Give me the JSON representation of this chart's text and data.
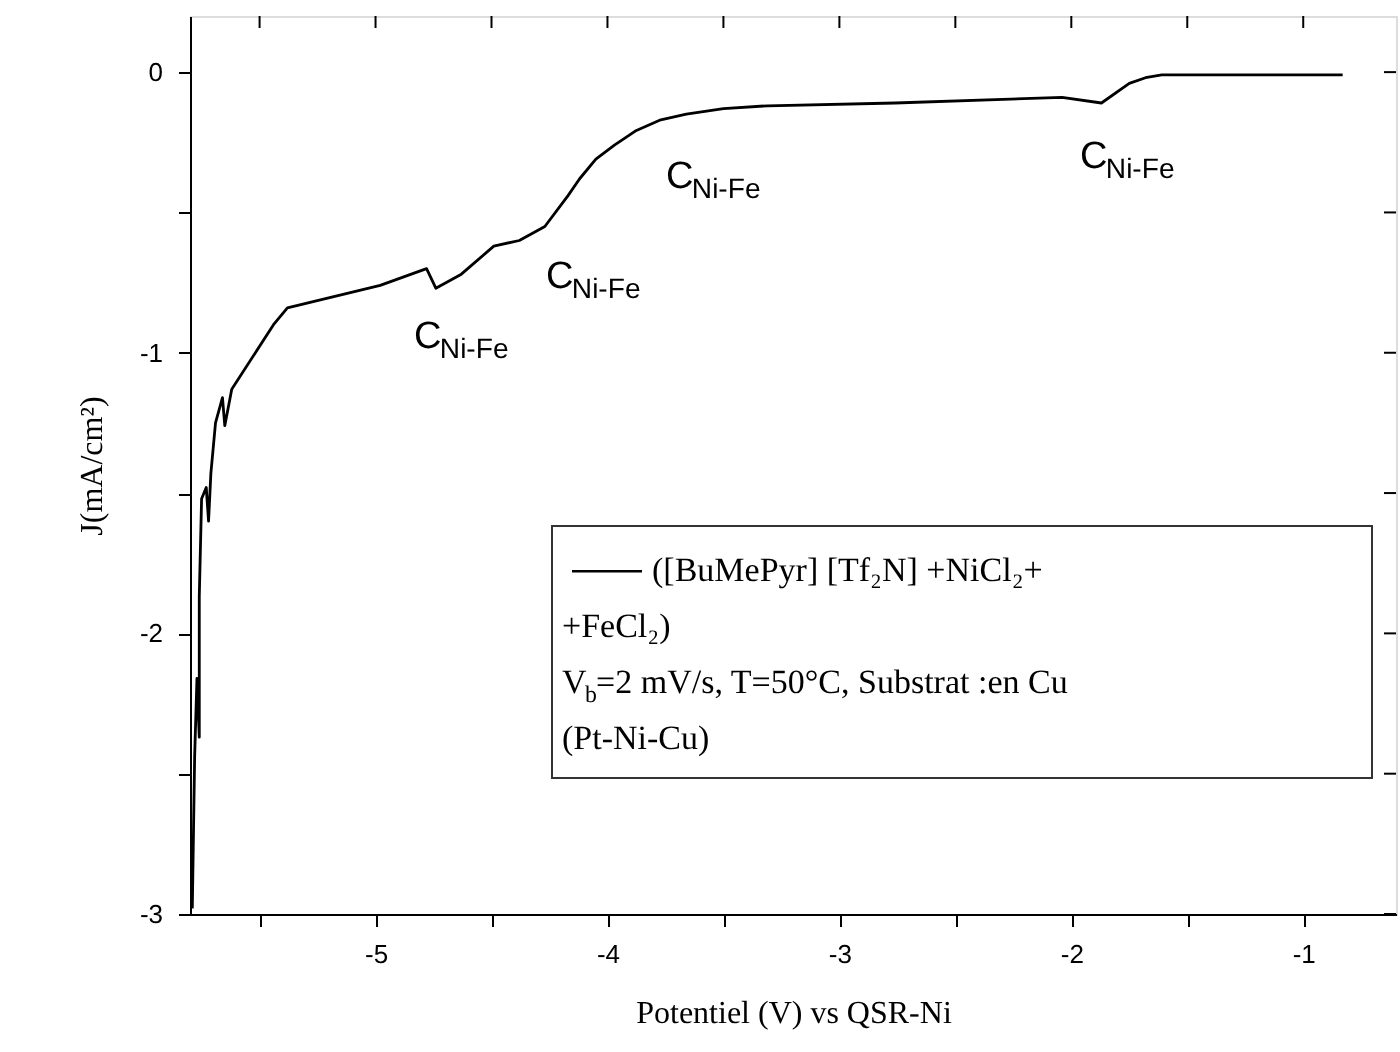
{
  "chart_data": {
    "type": "line",
    "xlabel": "Potentiel  (V) vs QSR-Ni",
    "ylabel": "J(mA/cm²)",
    "xlim": [
      -5.8,
      -0.6
    ],
    "ylim": [
      -3,
      0.2
    ],
    "xticks": [
      {
        "value": -5.5,
        "label": null
      },
      -5,
      {
        "value": -4.5,
        "label": null
      },
      -4,
      {
        "value": -3.5,
        "label": null
      },
      -3,
      {
        "value": -2.5,
        "label": null
      },
      -2,
      {
        "value": -1.5,
        "label": null
      },
      -1
    ],
    "yticks": [
      -3,
      {
        "value": -2.5,
        "label": null
      },
      -2,
      {
        "value": -1.5,
        "label": null
      },
      -1,
      {
        "value": -0.5,
        "label": null
      },
      0
    ],
    "grid": false,
    "legend": "bottom right",
    "marker": "none",
    "line_style": "solid",
    "series": [
      {
        "name": "([BuMePyr] [Tf₂N] +NiCl₂+ +FeCl₂)",
        "color": "#000000",
        "x": [
          -5.79,
          -5.78,
          -5.77,
          -5.76,
          -5.76,
          -5.75,
          -5.73,
          -5.72,
          -5.71,
          -5.69,
          -5.66,
          -5.65,
          -5.62,
          -5.44,
          -5.38,
          -4.98,
          -4.78,
          -4.74,
          -4.63,
          -4.49,
          -4.38,
          -4.27,
          -4.17,
          -4.12,
          -4.05,
          -3.97,
          -3.88,
          -3.77,
          -3.66,
          -3.5,
          -3.31,
          -2.76,
          -2.04,
          -1.87,
          -1.75,
          -1.68,
          -1.61,
          -0.83
        ],
        "values": [
          -2.98,
          -2.44,
          -2.16,
          -2.37,
          -1.87,
          -1.52,
          -1.48,
          -1.6,
          -1.43,
          -1.25,
          -1.16,
          -1.26,
          -1.13,
          -0.9,
          -0.84,
          -0.76,
          -0.7,
          -0.77,
          -0.72,
          -0.62,
          -0.6,
          -0.55,
          -0.44,
          -0.38,
          -0.31,
          -0.26,
          -0.21,
          -0.17,
          -0.15,
          -0.13,
          -0.12,
          -0.11,
          -0.09,
          -0.11,
          -0.04,
          -0.02,
          -0.01,
          -0.01
        ]
      }
    ],
    "annotations": [
      "C$_{Ni-Fe}$",
      "C$_{Ni-Fe}$",
      "C$_{Ni-Fe}$",
      "C$_{Ni-Fe}$",
      "V$_{b}$=2 mV/s,  T=50°C, Substrat :en Cu",
      "(Pt-Ni-Cu)"
    ]
  }
}
